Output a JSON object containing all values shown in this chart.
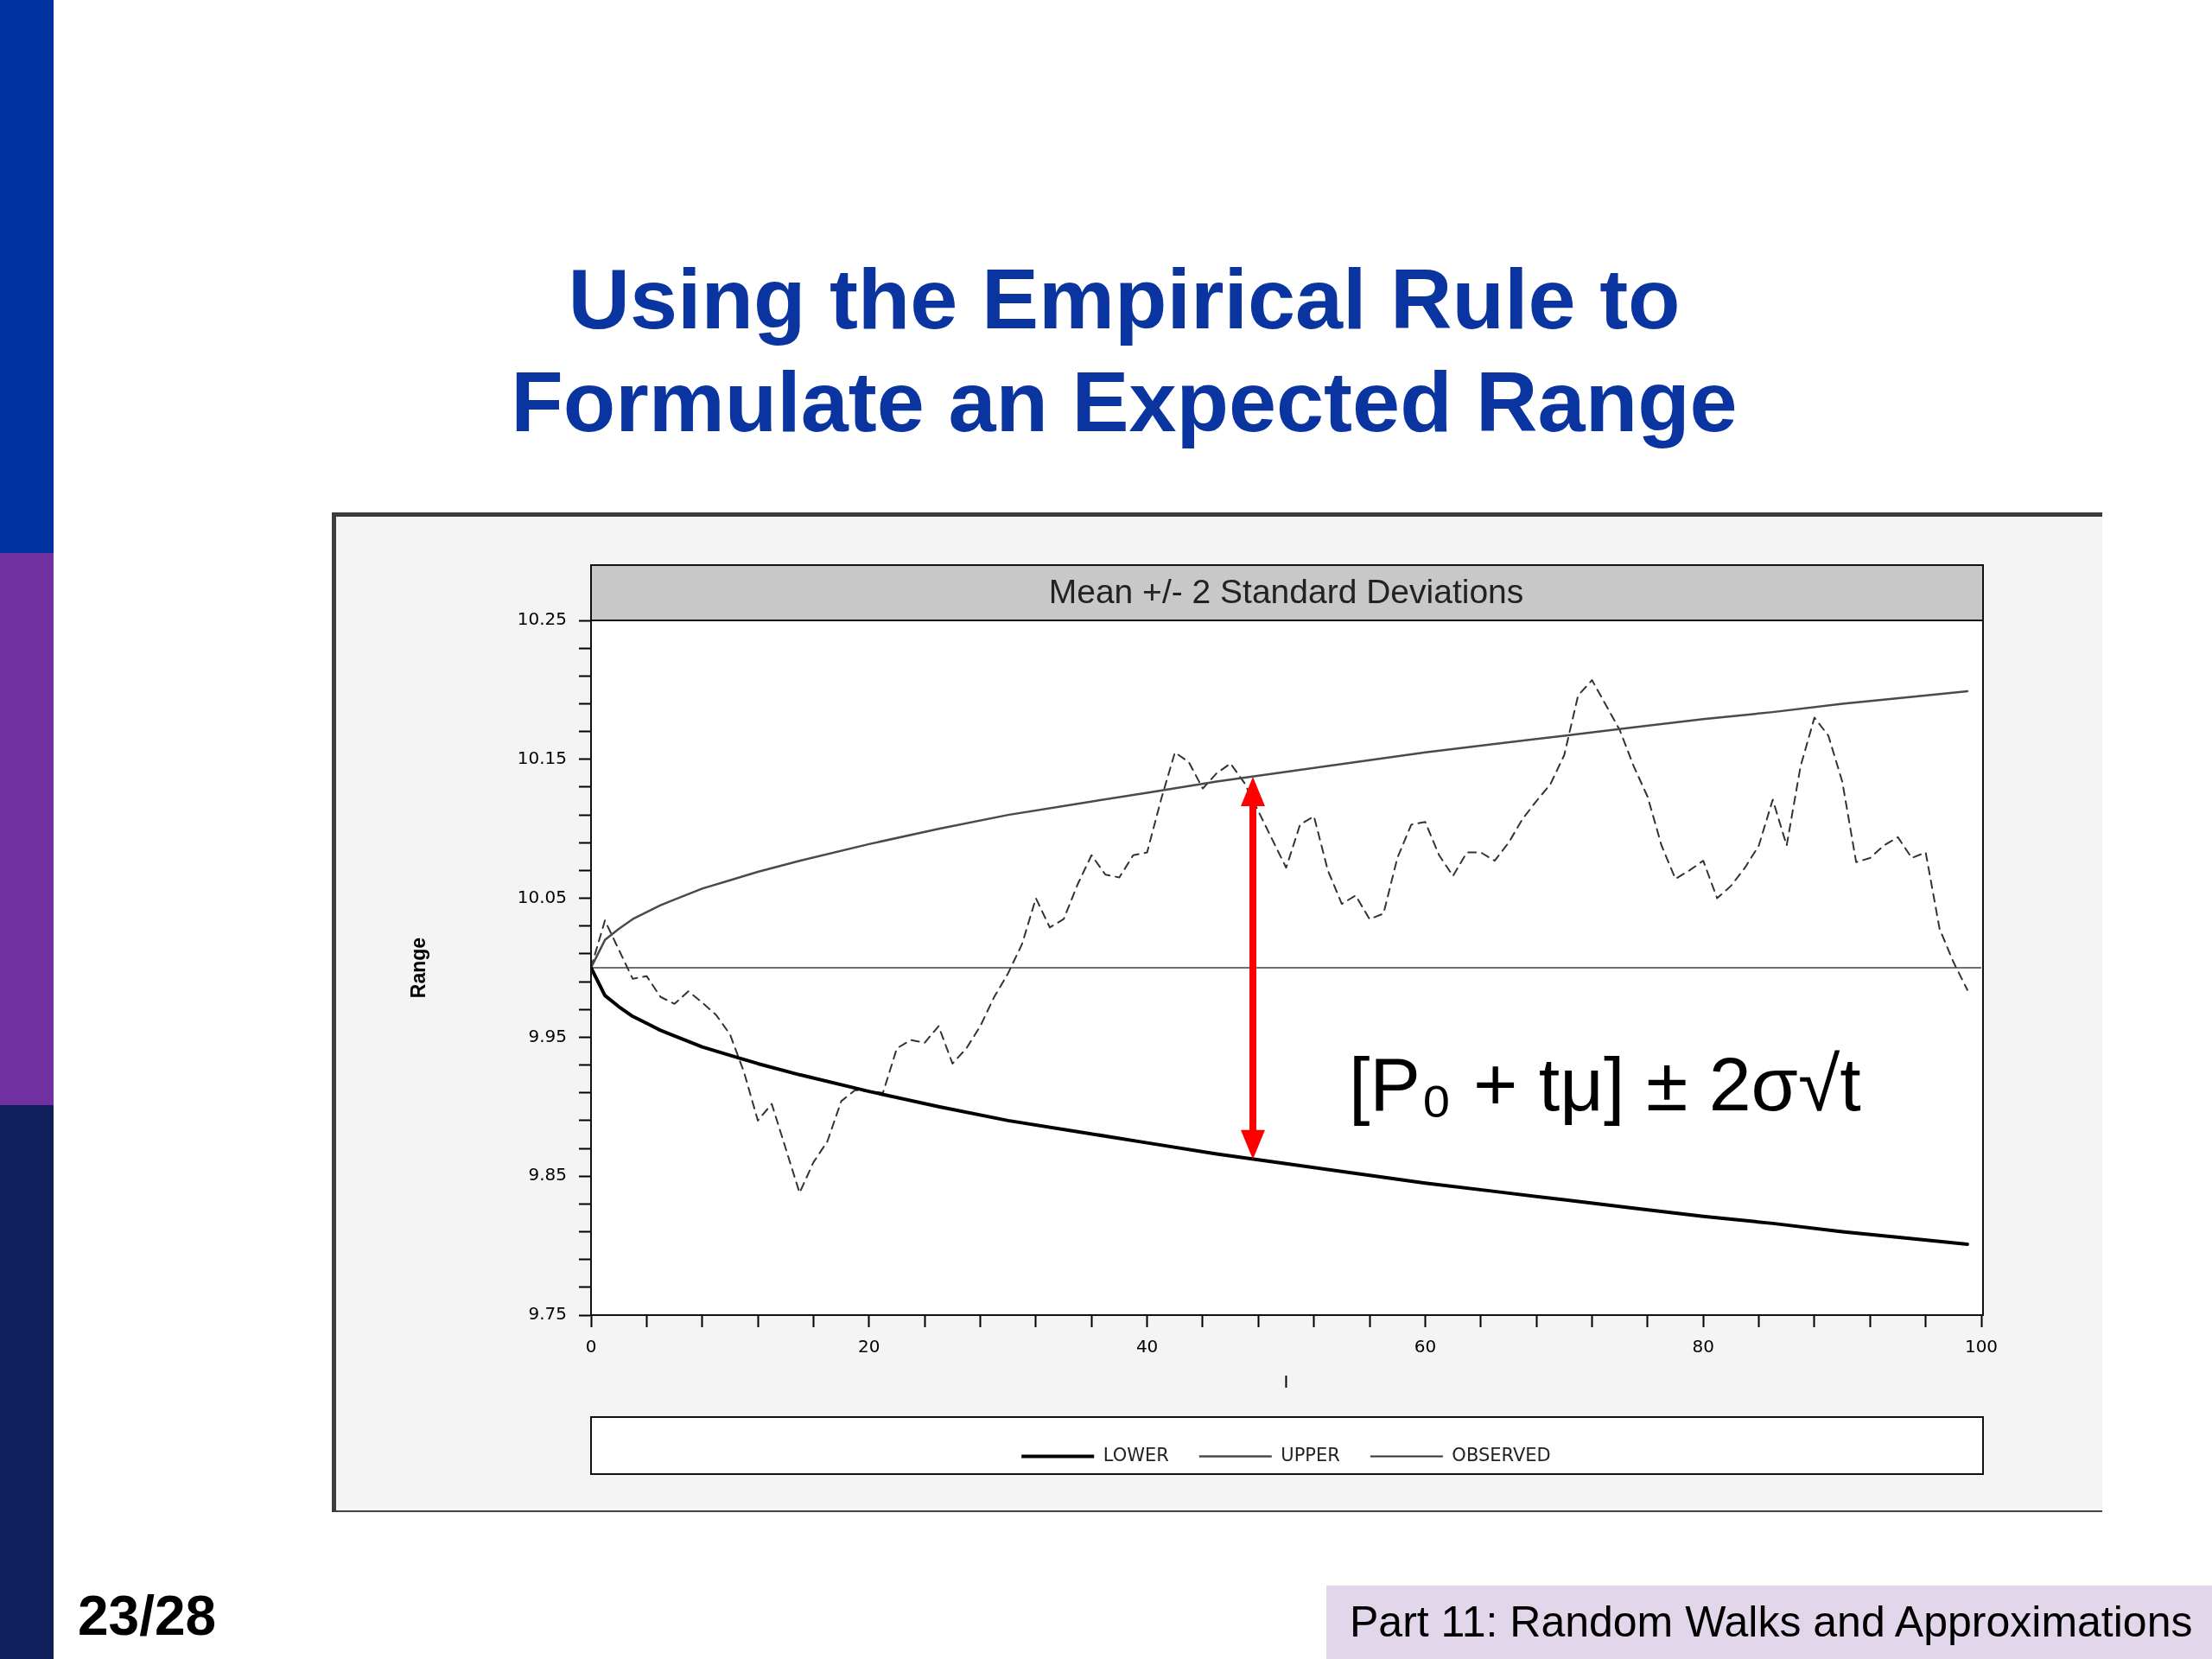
{
  "chart_data": {
    "type": "line",
    "title": "Using the Empirical Rule to Formulate an Expected Range",
    "subtitle": "Mean +/- 2 Standard Deviations",
    "xlabel": "I",
    "ylabel": "Range",
    "xlim": [
      0,
      100
    ],
    "xticks": [
      0,
      {
        "value": 4,
        "label": null
      },
      {
        "value": 8,
        "label": null
      },
      {
        "value": 12,
        "label": null
      },
      {
        "value": 16,
        "label": null
      },
      20,
      {
        "value": 24,
        "label": null
      },
      {
        "value": 28,
        "label": null
      },
      {
        "value": 32,
        "label": null
      },
      {
        "value": 36,
        "label": null
      },
      40,
      {
        "value": 44,
        "label": null
      },
      {
        "value": 48,
        "label": null
      },
      {
        "value": 52,
        "label": null
      },
      {
        "value": 56,
        "label": null
      },
      60,
      {
        "value": 64,
        "label": null
      },
      {
        "value": 68,
        "label": null
      },
      {
        "value": 72,
        "label": null
      },
      {
        "value": 76,
        "label": null
      },
      80,
      {
        "value": 84,
        "label": null
      },
      {
        "value": 88,
        "label": null
      },
      {
        "value": 92,
        "label": null
      },
      {
        "value": 96,
        "label": null
      },
      100
    ],
    "ylim": [
      9.75,
      10.25
    ],
    "yticks": [
      9.75,
      {
        "value": 9.77,
        "label": null
      },
      {
        "value": 9.79,
        "label": null
      },
      {
        "value": 9.81,
        "label": null
      },
      {
        "value": 9.83,
        "label": null
      },
      9.85,
      {
        "value": 9.87,
        "label": null
      },
      {
        "value": 9.89,
        "label": null
      },
      {
        "value": 9.91,
        "label": null
      },
      {
        "value": 9.93,
        "label": null
      },
      9.95,
      {
        "value": 9.97,
        "label": null
      },
      {
        "value": 9.99,
        "label": null
      },
      {
        "value": 10.01,
        "label": null
      },
      {
        "value": 10.03,
        "label": null
      },
      10.05,
      {
        "value": 10.07,
        "label": null
      },
      {
        "value": 10.09,
        "label": null
      },
      {
        "value": 10.11,
        "label": null
      },
      {
        "value": 10.13,
        "label": null
      },
      10.15,
      {
        "value": 10.17,
        "label": null
      },
      {
        "value": 10.19,
        "label": null
      },
      {
        "value": 10.21,
        "label": null
      },
      {
        "value": 10.23,
        "label": null
      },
      10.25
    ],
    "grid": false,
    "legend": "bottom",
    "marker": "none",
    "ref_lines": [
      {
        "axis": "y",
        "value": 10,
        "color": "#707070"
      }
    ],
    "annotations": [
      "[P₀ + tμ] ± 2σ√t",
      "23/28",
      "Part 11: Random Walks and Approximations"
    ],
    "series": [
      {
        "name": "LOWER",
        "color": "#000000",
        "line_style": "solid",
        "x": [
          0,
          1,
          2,
          3,
          4,
          5,
          6,
          8,
          10,
          12,
          15,
          20,
          25,
          30,
          35,
          40,
          45,
          50,
          55,
          60,
          65,
          70,
          75,
          80,
          85,
          90,
          95,
          99
        ],
        "values": [
          10.0,
          9.98,
          9.972,
          9.965,
          9.96,
          9.955,
          9.951,
          9.943,
          9.937,
          9.931,
          9.923,
          9.911,
          9.9,
          9.89,
          9.882,
          9.874,
          9.866,
          9.859,
          9.852,
          9.845,
          9.839,
          9.833,
          9.827,
          9.821,
          9.816,
          9.81,
          9.805,
          9.801
        ]
      },
      {
        "name": "UPPER",
        "color": "#4a4a4a",
        "line_style": "solid",
        "x": [
          0,
          1,
          2,
          3,
          4,
          5,
          6,
          8,
          10,
          12,
          15,
          20,
          25,
          30,
          35,
          40,
          45,
          50,
          55,
          60,
          65,
          70,
          75,
          80,
          85,
          90,
          95,
          99
        ],
        "values": [
          10.0,
          10.02,
          10.028,
          10.035,
          10.04,
          10.045,
          10.049,
          10.057,
          10.063,
          10.069,
          10.077,
          10.089,
          10.1,
          10.11,
          10.118,
          10.126,
          10.134,
          10.141,
          10.148,
          10.155,
          10.161,
          10.167,
          10.173,
          10.179,
          10.184,
          10.19,
          10.195,
          10.199
        ]
      },
      {
        "name": "OBSERVED",
        "color": "#333333",
        "line_style": "dashed",
        "x": [
          0,
          1,
          3,
          4,
          5,
          6,
          7,
          8,
          9,
          10,
          11,
          12,
          13,
          15,
          16,
          17,
          18,
          19,
          21,
          22,
          23,
          24,
          25,
          26,
          27,
          28,
          29,
          30,
          31,
          32,
          33,
          34,
          35,
          36,
          37,
          38,
          39,
          40,
          41,
          42,
          43,
          44,
          45,
          46,
          47,
          50,
          51,
          52,
          53,
          54,
          55,
          56,
          57,
          58,
          59,
          60,
          61,
          62,
          63,
          64,
          65,
          66,
          67,
          68,
          69,
          70,
          71,
          72,
          73,
          74,
          75,
          76,
          77,
          78,
          79,
          80,
          81,
          82,
          83,
          84,
          85,
          86,
          87,
          88,
          89,
          90,
          91,
          92,
          93,
          94,
          95,
          96,
          97,
          98,
          99
        ],
        "values": [
          10.0,
          10.034,
          9.992,
          9.994,
          9.979,
          9.974,
          9.983,
          9.975,
          9.966,
          9.952,
          9.925,
          9.89,
          9.902,
          9.838,
          9.86,
          9.875,
          9.904,
          9.912,
          9.91,
          9.942,
          9.948,
          9.946,
          9.958,
          9.931,
          9.942,
          9.958,
          9.979,
          9.996,
          10.017,
          10.05,
          10.029,
          10.035,
          10.06,
          10.081,
          10.067,
          10.065,
          10.081,
          10.083,
          10.121,
          10.155,
          10.148,
          10.129,
          10.14,
          10.147,
          10.133,
          10.072,
          10.103,
          10.109,
          10.07,
          10.046,
          10.052,
          10.035,
          10.039,
          10.079,
          10.103,
          10.105,
          10.081,
          10.066,
          10.083,
          10.083,
          10.077,
          10.09,
          10.107,
          10.12,
          10.132,
          10.153,
          10.196,
          10.207,
          10.189,
          10.171,
          10.145,
          10.123,
          10.088,
          10.064,
          10.07,
          10.077,
          10.05,
          10.059,
          10.072,
          10.088,
          10.121,
          10.088,
          10.145,
          10.18,
          10.167,
          10.134,
          10.076,
          10.079,
          10.088,
          10.094,
          10.079,
          10.083,
          10.028,
          10.004,
          9.984
        ]
      }
    ]
  }
}
